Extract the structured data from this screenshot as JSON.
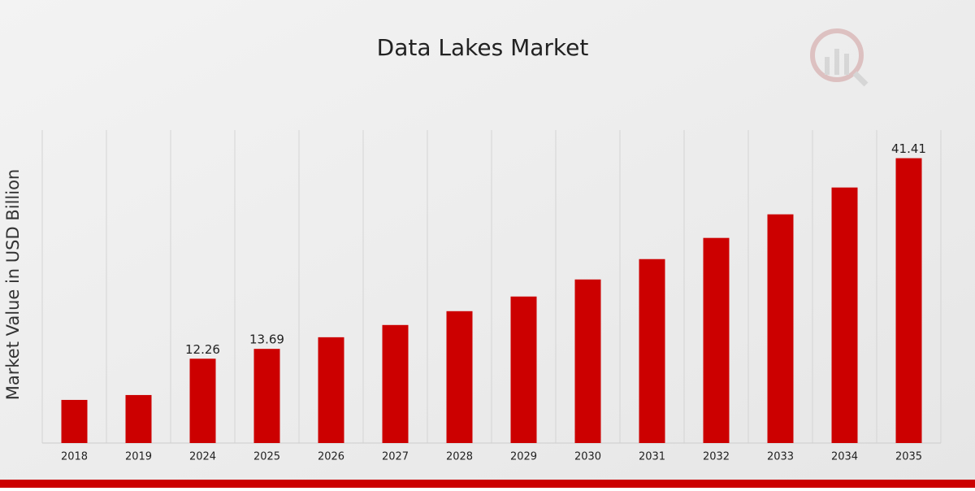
{
  "chart_data": {
    "type": "bar",
    "title": "Data Lakes Market",
    "y_label": "Market Value in USD Billion",
    "categories": [
      "2018",
      "2019",
      "2024",
      "2025",
      "2026",
      "2027",
      "2028",
      "2029",
      "2030",
      "2031",
      "2032",
      "2033",
      "2034",
      "2035"
    ],
    "values": [
      6.27,
      6.98,
      12.26,
      13.69,
      15.38,
      17.16,
      19.17,
      21.3,
      23.78,
      26.74,
      29.82,
      33.25,
      37.15,
      41.41
    ],
    "value_labels": [
      null,
      null,
      "12.26",
      "13.69",
      null,
      null,
      null,
      null,
      null,
      null,
      null,
      null,
      null,
      "41.41"
    ],
    "color": "#cc0000",
    "ylim": [
      0,
      45.5
    ],
    "grid": "x"
  }
}
